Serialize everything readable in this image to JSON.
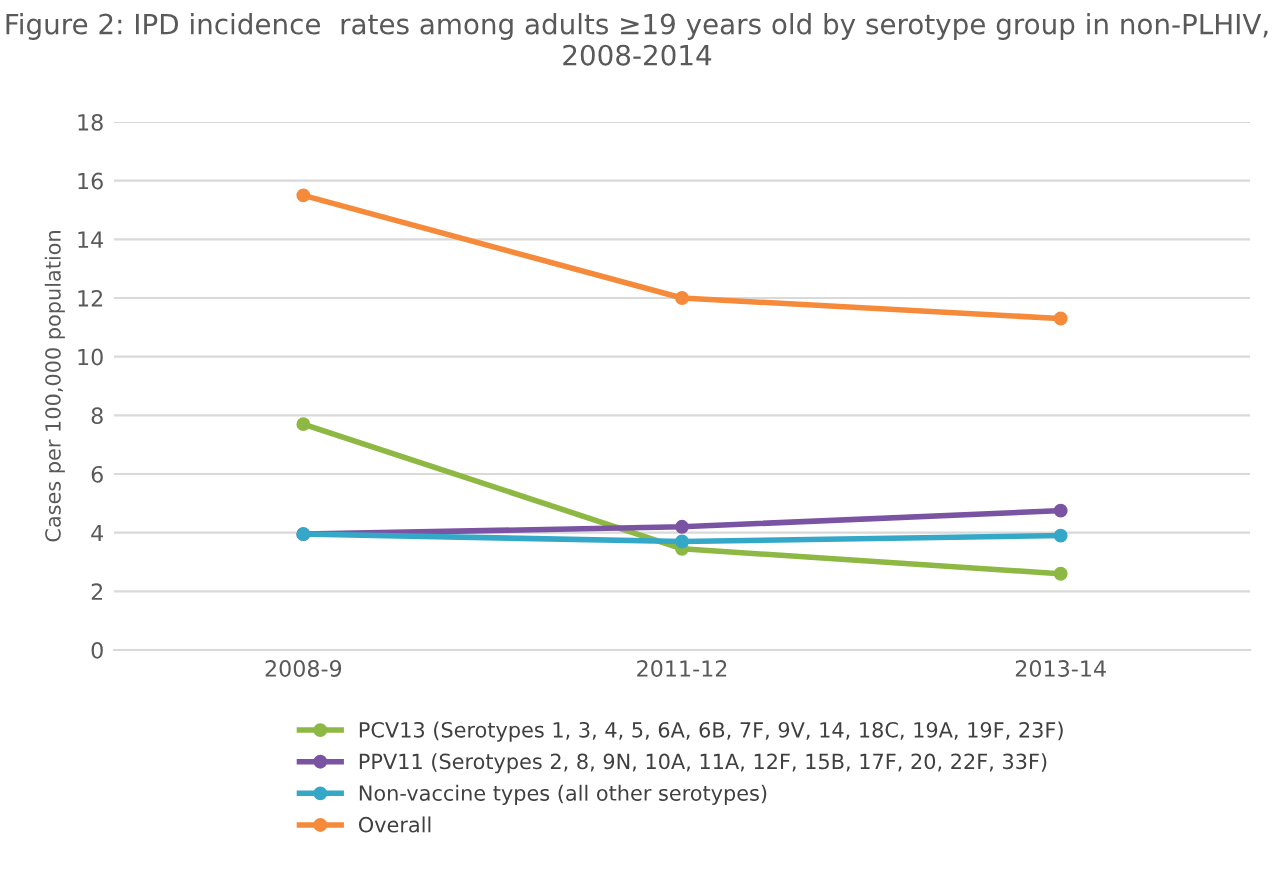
{
  "chart_data": {
    "type": "line",
    "title": "Figure 2: IPD incidence  rates among adults ≥19 years old by serotype group in non-PLHIV,\n2008-2014",
    "ylabel": "Cases per 100,000 population",
    "categories": [
      "2008-9",
      "2011-12",
      "2013-14"
    ],
    "series": [
      {
        "name": "PCV13 (Serotypes 1, 3, 4, 5, 6A, 6B, 7F, 9V, 14, 18C, 19A, 19F, 23F)",
        "color": "#8db843",
        "values": [
          7.7,
          3.45,
          2.6
        ]
      },
      {
        "name": "PPV11 (Serotypes 2, 8, 9N, 10A, 11A, 12F, 15B, 17F, 20, 22F, 33F)",
        "color": "#7a54a2",
        "values": [
          3.95,
          4.2,
          4.75
        ]
      },
      {
        "name": "Non-vaccine types (all other serotypes)",
        "color": "#35a8c8",
        "values": [
          3.95,
          3.7,
          3.9
        ]
      },
      {
        "name": "Overall",
        "color": "#f58a3a",
        "values": [
          15.5,
          12.0,
          11.3
        ]
      }
    ],
    "ylim": [
      0,
      18
    ],
    "yticks": [
      0,
      2,
      4,
      6,
      8,
      10,
      12,
      14,
      16,
      18
    ],
    "grid": "y",
    "legend": "bottom",
    "marker": "circle",
    "line_style": "solid"
  }
}
